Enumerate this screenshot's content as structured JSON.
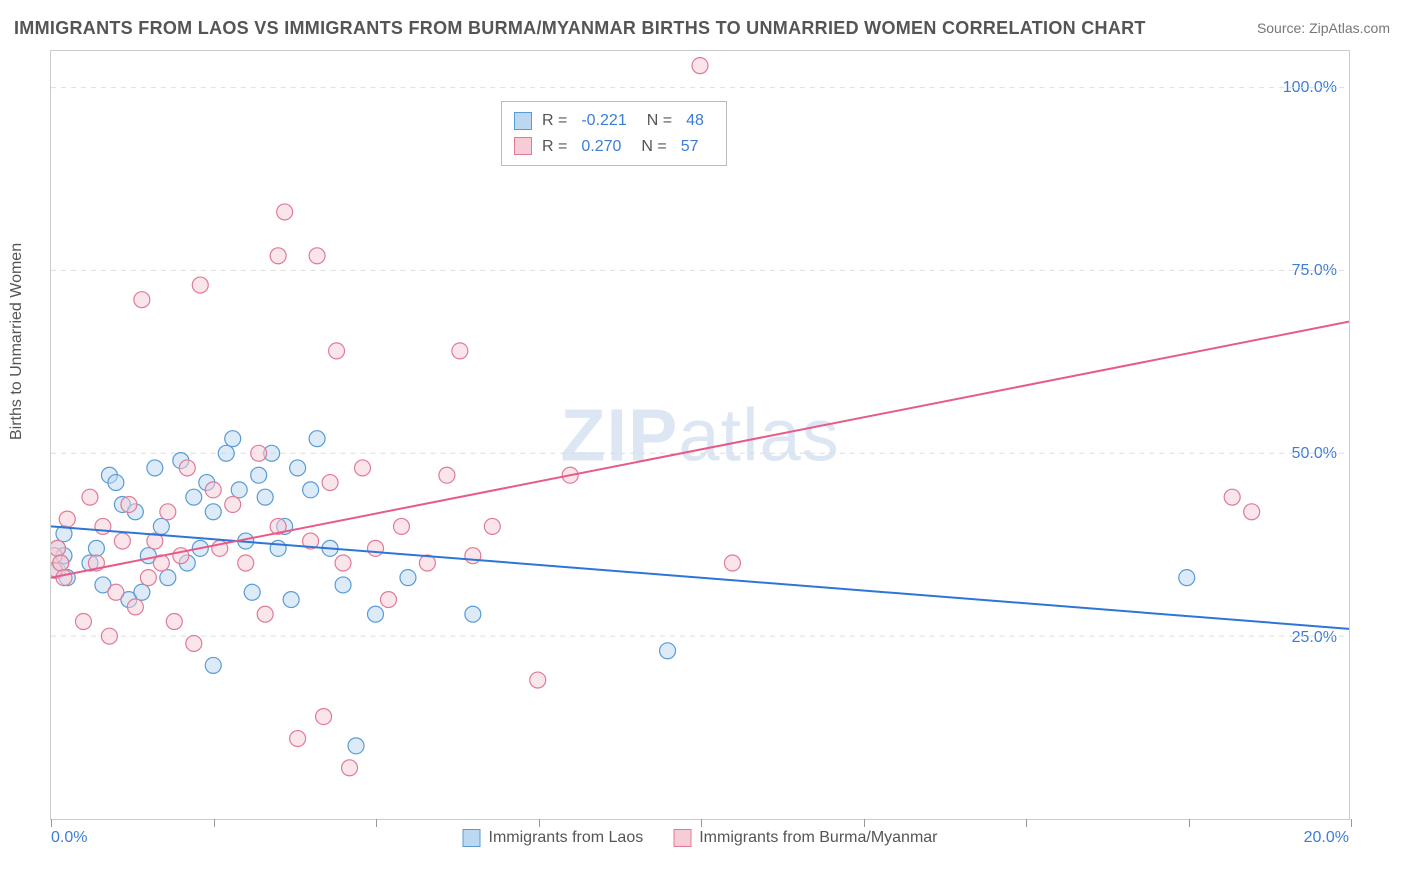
{
  "title": "IMMIGRANTS FROM LAOS VS IMMIGRANTS FROM BURMA/MYANMAR BIRTHS TO UNMARRIED WOMEN CORRELATION CHART",
  "source_label": "Source: ZipAtlas.com",
  "y_axis_label": "Births to Unmarried Women",
  "watermark_bold": "ZIP",
  "watermark_light": "atlas",
  "chart": {
    "type": "scatter",
    "background_color": "#ffffff",
    "grid_color": "#dddddd",
    "border_color": "#cccccc",
    "xlim": [
      0,
      20
    ],
    "ylim": [
      0,
      105
    ],
    "x_ticks": [
      0,
      2.5,
      5,
      7.5,
      10,
      12.5,
      15,
      17.5,
      20
    ],
    "x_tick_labels_shown": {
      "0": "0.0%",
      "20": "20.0%"
    },
    "y_ticks": [
      25,
      50,
      75,
      100
    ],
    "y_tick_labels": [
      "25.0%",
      "50.0%",
      "75.0%",
      "100.0%"
    ],
    "marker_radius": 8,
    "marker_opacity": 0.5,
    "line_width": 2,
    "series": [
      {
        "key": "laos",
        "label": "Immigrants from Laos",
        "color_fill": "#bcd7f2",
        "color_stroke": "#5a9bd5",
        "line_color": "#2e75d6",
        "R": "-0.221",
        "N": "48",
        "trend": {
          "x1": 0,
          "y1": 40,
          "x2": 20,
          "y2": 26
        },
        "points": [
          [
            0.1,
            37
          ],
          [
            0.1,
            34
          ],
          [
            0.15,
            35
          ],
          [
            0.2,
            36
          ],
          [
            0.2,
            39
          ],
          [
            0.25,
            33
          ],
          [
            0.6,
            35
          ],
          [
            0.7,
            37
          ],
          [
            0.8,
            32
          ],
          [
            0.9,
            47
          ],
          [
            1.0,
            46
          ],
          [
            1.1,
            43
          ],
          [
            1.2,
            30
          ],
          [
            1.3,
            42
          ],
          [
            1.4,
            31
          ],
          [
            1.5,
            36
          ],
          [
            1.6,
            48
          ],
          [
            1.7,
            40
          ],
          [
            1.8,
            33
          ],
          [
            2.0,
            49
          ],
          [
            2.1,
            35
          ],
          [
            2.2,
            44
          ],
          [
            2.3,
            37
          ],
          [
            2.4,
            46
          ],
          [
            2.5,
            42
          ],
          [
            2.5,
            21
          ],
          [
            2.7,
            50
          ],
          [
            2.8,
            52
          ],
          [
            2.9,
            45
          ],
          [
            3.0,
            38
          ],
          [
            3.1,
            31
          ],
          [
            3.2,
            47
          ],
          [
            3.3,
            44
          ],
          [
            3.4,
            50
          ],
          [
            3.5,
            37
          ],
          [
            3.6,
            40
          ],
          [
            3.7,
            30
          ],
          [
            3.8,
            48
          ],
          [
            4.0,
            45
          ],
          [
            4.1,
            52
          ],
          [
            4.3,
            37
          ],
          [
            4.5,
            32
          ],
          [
            4.7,
            10
          ],
          [
            5.0,
            28
          ],
          [
            5.5,
            33
          ],
          [
            6.5,
            28
          ],
          [
            9.5,
            23
          ],
          [
            17.5,
            33
          ]
        ]
      },
      {
        "key": "burma",
        "label": "Immigrants from Burma/Myanmar",
        "color_fill": "#f6cdd6",
        "color_stroke": "#e17a96",
        "line_color": "#e85a87",
        "R": "0.270",
        "N": "57",
        "trend": {
          "x1": 0,
          "y1": 33,
          "x2": 20,
          "y2": 68
        },
        "points": [
          [
            0.05,
            36
          ],
          [
            0.05,
            34
          ],
          [
            0.1,
            37
          ],
          [
            0.15,
            35
          ],
          [
            0.2,
            33
          ],
          [
            0.25,
            41
          ],
          [
            0.5,
            27
          ],
          [
            0.6,
            44
          ],
          [
            0.7,
            35
          ],
          [
            0.8,
            40
          ],
          [
            0.9,
            25
          ],
          [
            1.0,
            31
          ],
          [
            1.1,
            38
          ],
          [
            1.2,
            43
          ],
          [
            1.3,
            29
          ],
          [
            1.4,
            71
          ],
          [
            1.5,
            33
          ],
          [
            1.6,
            38
          ],
          [
            1.7,
            35
          ],
          [
            1.8,
            42
          ],
          [
            1.9,
            27
          ],
          [
            2.0,
            36
          ],
          [
            2.1,
            48
          ],
          [
            2.2,
            24
          ],
          [
            2.3,
            73
          ],
          [
            2.5,
            45
          ],
          [
            2.6,
            37
          ],
          [
            2.8,
            43
          ],
          [
            3.0,
            35
          ],
          [
            3.2,
            50
          ],
          [
            3.3,
            28
          ],
          [
            3.5,
            77
          ],
          [
            3.5,
            40
          ],
          [
            3.6,
            83
          ],
          [
            3.8,
            11
          ],
          [
            4.0,
            38
          ],
          [
            4.1,
            77
          ],
          [
            4.2,
            14
          ],
          [
            4.3,
            46
          ],
          [
            4.4,
            64
          ],
          [
            4.5,
            35
          ],
          [
            4.6,
            7
          ],
          [
            4.8,
            48
          ],
          [
            5.0,
            37
          ],
          [
            5.2,
            30
          ],
          [
            5.4,
            40
          ],
          [
            5.8,
            35
          ],
          [
            6.1,
            47
          ],
          [
            6.3,
            64
          ],
          [
            6.5,
            36
          ],
          [
            6.8,
            40
          ],
          [
            7.5,
            19
          ],
          [
            8.0,
            47
          ],
          [
            10.0,
            103
          ],
          [
            10.5,
            35
          ],
          [
            18.2,
            44
          ],
          [
            18.5,
            42
          ]
        ]
      }
    ]
  },
  "legend_top": {
    "r_label": "R =",
    "n_label": "N ="
  }
}
